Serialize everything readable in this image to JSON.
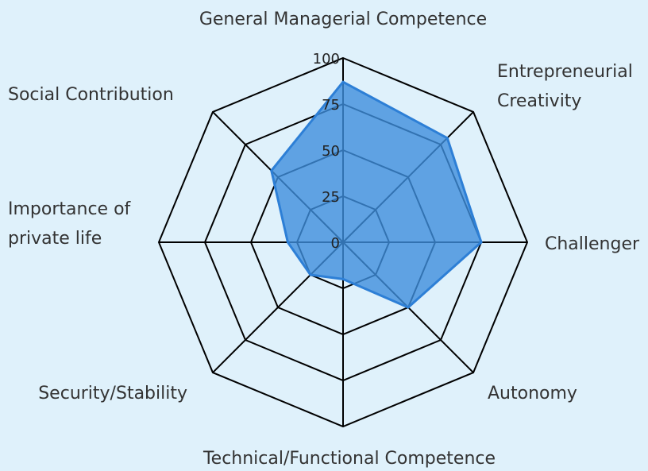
{
  "chart_data": {
    "type": "radar",
    "axes": [
      "General Managerial Competence",
      "Entrepreneurial Creativity",
      "Challenger",
      "Autonomy",
      "Technical/Functional Competence",
      "Security/Stability",
      "Importance of private life",
      "Social Contribution"
    ],
    "label_lines": [
      [
        "General Managerial Competence"
      ],
      [
        "Entrepreneurial",
        "Creativity"
      ],
      [
        "Challenger"
      ],
      [
        "Autonomy"
      ],
      [
        "Technical/Functional Competence"
      ],
      [
        "Security/Stability"
      ],
      [
        "Importance of",
        "private life"
      ],
      [
        "Social Contribution"
      ]
    ],
    "values": [
      87,
      80,
      75,
      50,
      20,
      25,
      30,
      55
    ],
    "range": [
      0,
      100
    ],
    "ticks": [
      0,
      25,
      50,
      75,
      100
    ],
    "grid_rings": 4,
    "colors": {
      "fill": "#3f8fdd",
      "stroke": "#2d7fd6",
      "grid": "#000000",
      "background": "#dff1fb"
    }
  }
}
